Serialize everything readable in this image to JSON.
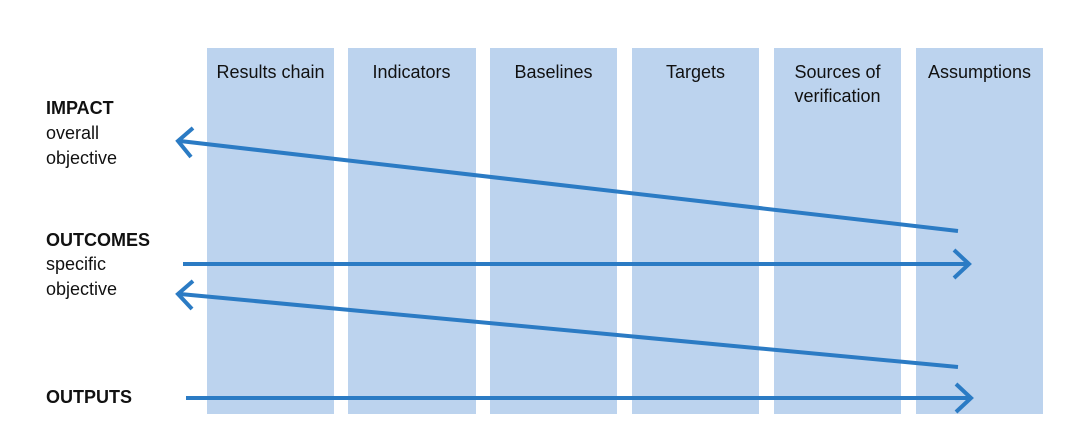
{
  "columns": [
    "Results chain",
    "Indicators",
    "Baselines",
    "Targets",
    "Sources of verification",
    "Assumptions"
  ],
  "rows": [
    {
      "title": "IMPACT",
      "subtitle": "overall objective"
    },
    {
      "title": "OUTCOMES",
      "subtitle": "specific objective"
    },
    {
      "title": "OUTPUTS"
    }
  ]
}
